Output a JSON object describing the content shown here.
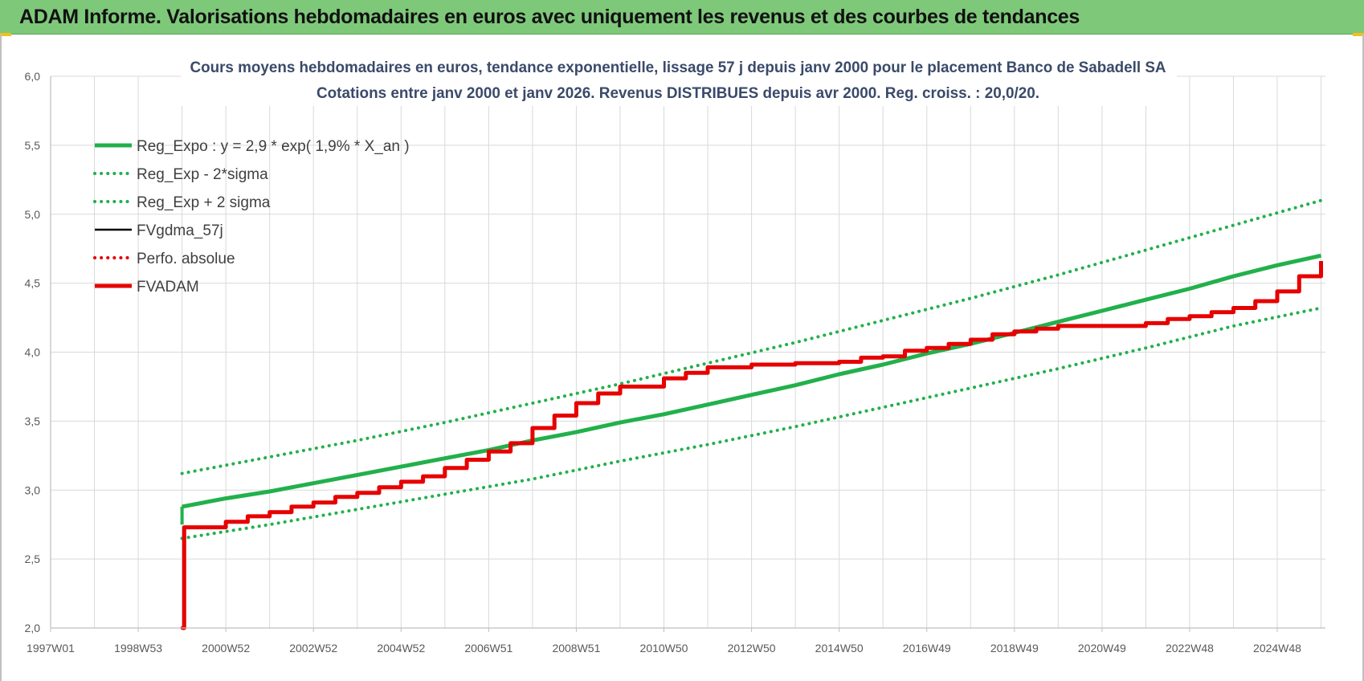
{
  "banner": {
    "title": "ADAM Informe. Valorisations hebdomadaires en euros avec uniquement les revenus et des courbes de tendances"
  },
  "colors": {
    "banner_bg": "#7ec87a",
    "trend": "#22b04c",
    "trend_band": "#22b04c",
    "gdma": "#000000",
    "perf": "#e60000",
    "fvadam": "#e60000",
    "grid": "#d9d9d9"
  },
  "chart_data": {
    "type": "line",
    "title": "Cours moyens hebdomadaires en euros, tendance exponentielle, lissage 57 j depuis janv 2000 pour le placement Banco de Sabadell SA",
    "subtitle": "Cotations entre janv 2000 et janv 2026. Revenus DISTRIBUES depuis avr 2000. Reg. croiss. : 20,0/20.",
    "xlabel": "",
    "ylabel": "",
    "ylim": [
      2.0,
      6.0
    ],
    "xlim": [
      1997.0,
      2026.1
    ],
    "grid": true,
    "legend_position": "top-left",
    "y_ticks": [
      "2,0",
      "2,5",
      "3,0",
      "3,5",
      "4,0",
      "4,5",
      "5,0",
      "5,5",
      "6,0"
    ],
    "x_ticks": [
      {
        "label": "1997W01",
        "x": 1997.0
      },
      {
        "label": "1998W53",
        "x": 1999.0
      },
      {
        "label": "2000W52",
        "x": 2001.0
      },
      {
        "label": "2002W52",
        "x": 2003.0
      },
      {
        "label": "2004W52",
        "x": 2005.0
      },
      {
        "label": "2006W51",
        "x": 2007.0
      },
      {
        "label": "2008W51",
        "x": 2009.0
      },
      {
        "label": "2010W50",
        "x": 2011.0
      },
      {
        "label": "2012W50",
        "x": 2013.0
      },
      {
        "label": "2014W50",
        "x": 2015.0
      },
      {
        "label": "2016W49",
        "x": 2017.0
      },
      {
        "label": "2018W49",
        "x": 2019.0
      },
      {
        "label": "2020W49",
        "x": 2021.0
      },
      {
        "label": "2022W48",
        "x": 2023.0
      },
      {
        "label": "2024W48",
        "x": 2025.0
      }
    ],
    "series": [
      {
        "name": "Reg_Expo : y = 2,9 * exp( 1,9% *  X_an )",
        "style": "solid-thick",
        "color": "#22b04c",
        "x": [
          2000.0,
          2001.0,
          2002.0,
          2003.0,
          2004.0,
          2005.0,
          2006.0,
          2007.0,
          2008.0,
          2009.0,
          2010.0,
          2011.0,
          2012.0,
          2013.0,
          2014.0,
          2015.0,
          2016.0,
          2017.0,
          2018.0,
          2019.0,
          2020.0,
          2021.0,
          2022.0,
          2023.0,
          2024.0,
          2025.0,
          2026.0
        ],
        "y": [
          2.88,
          2.94,
          2.99,
          3.05,
          3.11,
          3.17,
          3.23,
          3.29,
          3.36,
          3.42,
          3.49,
          3.55,
          3.62,
          3.69,
          3.76,
          3.84,
          3.91,
          3.99,
          4.06,
          4.14,
          4.22,
          4.3,
          4.38,
          4.46,
          4.55,
          4.63,
          4.7
        ]
      },
      {
        "name": "Reg_Exp - 2*sigma",
        "style": "dotted",
        "color": "#22b04c",
        "x": [
          2000.0,
          2002.0,
          2004.0,
          2006.0,
          2008.0,
          2010.0,
          2012.0,
          2014.0,
          2016.0,
          2018.0,
          2020.0,
          2022.0,
          2024.0,
          2026.0
        ],
        "y": [
          2.65,
          2.75,
          2.86,
          2.97,
          3.08,
          3.21,
          3.33,
          3.46,
          3.6,
          3.74,
          3.88,
          4.03,
          4.19,
          4.32
        ]
      },
      {
        "name": "Reg_Exp + 2 sigma",
        "style": "dotted",
        "color": "#22b04c",
        "x": [
          2000.0,
          2002.0,
          2004.0,
          2006.0,
          2008.0,
          2010.0,
          2012.0,
          2014.0,
          2016.0,
          2018.0,
          2020.0,
          2022.0,
          2024.0,
          2026.0
        ],
        "y": [
          3.12,
          3.24,
          3.36,
          3.49,
          3.63,
          3.77,
          3.92,
          4.07,
          4.23,
          4.39,
          4.56,
          4.74,
          4.92,
          5.1
        ]
      },
      {
        "name": "FVgdma_57j",
        "style": "solid",
        "color": "#000000",
        "x": [
          2000.0,
          2000.05,
          2001.0,
          2001.5,
          2002.0,
          2002.5,
          2003.0,
          2003.5,
          2004.0,
          2004.5,
          2005.0,
          2005.5,
          2006.0,
          2006.5,
          2007.0,
          2007.5,
          2008.0,
          2008.5,
          2009.0,
          2009.5,
          2010.0,
          2010.5,
          2011.0,
          2011.5,
          2012.0,
          2013.0,
          2014.0,
          2015.0,
          2015.5,
          2016.0,
          2016.5,
          2017.0,
          2017.5,
          2018.0,
          2018.5,
          2019.0,
          2019.5,
          2020.0,
          2021.0,
          2022.0,
          2022.5,
          2023.0,
          2023.5,
          2024.0,
          2024.5,
          2025.0,
          2025.5,
          2026.0
        ],
        "y": [
          2.0,
          2.73,
          2.77,
          2.81,
          2.84,
          2.88,
          2.91,
          2.95,
          2.98,
          3.02,
          3.06,
          3.1,
          3.16,
          3.22,
          3.28,
          3.34,
          3.45,
          3.54,
          3.63,
          3.7,
          3.75,
          3.75,
          3.81,
          3.85,
          3.89,
          3.91,
          3.92,
          3.93,
          3.96,
          3.97,
          4.01,
          4.03,
          4.06,
          4.09,
          4.13,
          4.15,
          4.17,
          4.19,
          4.19,
          4.21,
          4.24,
          4.26,
          4.29,
          4.32,
          4.37,
          4.44,
          4.55,
          4.66
        ]
      },
      {
        "name": "Perfo. absolue",
        "style": "dotted",
        "color": "#e60000",
        "x": [
          2000.0,
          2000.05,
          2001.0,
          2001.5,
          2002.0,
          2002.5,
          2003.0,
          2003.5,
          2004.0,
          2004.5,
          2005.0,
          2005.5,
          2006.0,
          2006.5,
          2007.0,
          2007.5,
          2008.0,
          2008.5,
          2009.0,
          2009.5,
          2010.0,
          2010.5,
          2011.0,
          2011.5,
          2012.0,
          2013.0,
          2014.0,
          2015.0,
          2015.5,
          2016.0,
          2016.5,
          2017.0,
          2017.5,
          2018.0,
          2018.5,
          2019.0,
          2019.5,
          2020.0,
          2021.0,
          2022.0,
          2022.5,
          2023.0,
          2023.5,
          2024.0,
          2024.5,
          2025.0,
          2025.5,
          2026.0
        ],
        "y": [
          2.0,
          2.73,
          2.77,
          2.81,
          2.84,
          2.88,
          2.91,
          2.95,
          2.98,
          3.02,
          3.06,
          3.1,
          3.16,
          3.22,
          3.28,
          3.34,
          3.45,
          3.54,
          3.63,
          3.7,
          3.75,
          3.75,
          3.81,
          3.85,
          3.89,
          3.91,
          3.92,
          3.93,
          3.96,
          3.97,
          4.01,
          4.03,
          4.06,
          4.09,
          4.13,
          4.15,
          4.17,
          4.19,
          4.19,
          4.21,
          4.24,
          4.26,
          4.29,
          4.32,
          4.37,
          4.44,
          4.55,
          4.66
        ]
      },
      {
        "name": "FVADAM",
        "style": "solid-thick",
        "color": "#e60000",
        "x": [
          2000.0,
          2000.05,
          2001.0,
          2001.5,
          2002.0,
          2002.5,
          2003.0,
          2003.5,
          2004.0,
          2004.5,
          2005.0,
          2005.5,
          2006.0,
          2006.5,
          2007.0,
          2007.5,
          2008.0,
          2008.5,
          2009.0,
          2009.5,
          2010.0,
          2010.5,
          2011.0,
          2011.5,
          2012.0,
          2013.0,
          2014.0,
          2015.0,
          2015.5,
          2016.0,
          2016.5,
          2017.0,
          2017.5,
          2018.0,
          2018.5,
          2019.0,
          2019.5,
          2020.0,
          2021.0,
          2022.0,
          2022.5,
          2023.0,
          2023.5,
          2024.0,
          2024.5,
          2025.0,
          2025.5,
          2026.0
        ],
        "y": [
          2.0,
          2.73,
          2.77,
          2.81,
          2.84,
          2.88,
          2.91,
          2.95,
          2.98,
          3.02,
          3.06,
          3.1,
          3.16,
          3.22,
          3.28,
          3.34,
          3.45,
          3.54,
          3.63,
          3.7,
          3.75,
          3.75,
          3.81,
          3.85,
          3.89,
          3.91,
          3.92,
          3.93,
          3.96,
          3.97,
          4.01,
          4.03,
          4.06,
          4.09,
          4.13,
          4.15,
          4.17,
          4.19,
          4.19,
          4.21,
          4.24,
          4.26,
          4.29,
          4.32,
          4.37,
          4.44,
          4.55,
          4.66
        ]
      }
    ]
  }
}
